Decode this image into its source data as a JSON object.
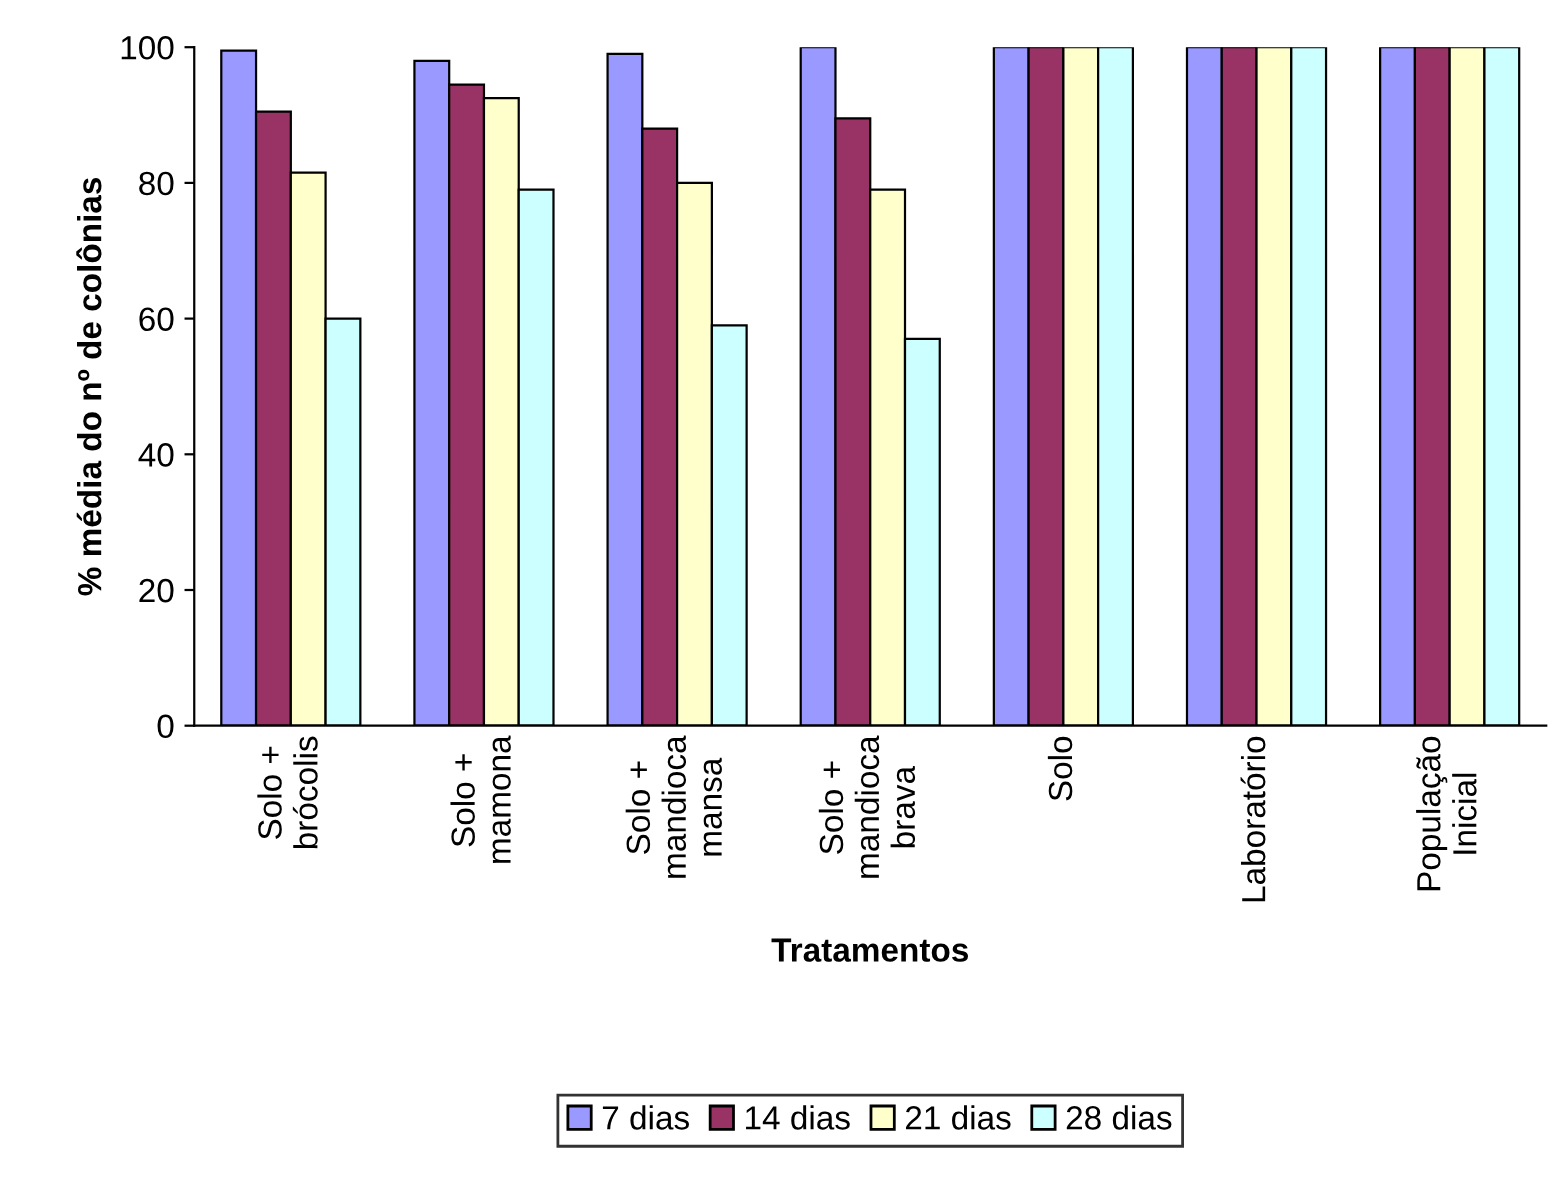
{
  "chart_data": {
    "type": "bar",
    "xlabel": "Tratamentos",
    "ylabel": "% média do nº de colônias",
    "categories": [
      "Solo +\nbrócolis",
      "Solo +\nmamona",
      "Solo +\nmandioca\nmansa",
      "Solo +\nmandioca\nbrava",
      "Solo",
      "Laboratório",
      "População\nInicial"
    ],
    "series": [
      {
        "name": "7 dias",
        "color": "#9999ff",
        "values": [
          99.5,
          98,
          99,
          100,
          100,
          100,
          100
        ]
      },
      {
        "name": "14 dias",
        "color": "#993366",
        "values": [
          90.5,
          94.5,
          88,
          89.5,
          100,
          100,
          100
        ]
      },
      {
        "name": "21 dias",
        "color": "#ffffcc",
        "values": [
          81.5,
          92.5,
          80,
          79,
          100,
          100,
          100
        ]
      },
      {
        "name": "28 dias",
        "color": "#ccffff",
        "values": [
          60,
          79,
          59,
          57,
          100,
          100,
          100
        ]
      }
    ],
    "ylim": [
      0,
      100
    ],
    "yticks": [
      0,
      20,
      40,
      60,
      80,
      100
    ],
    "grid": false,
    "legend": "bottom"
  }
}
